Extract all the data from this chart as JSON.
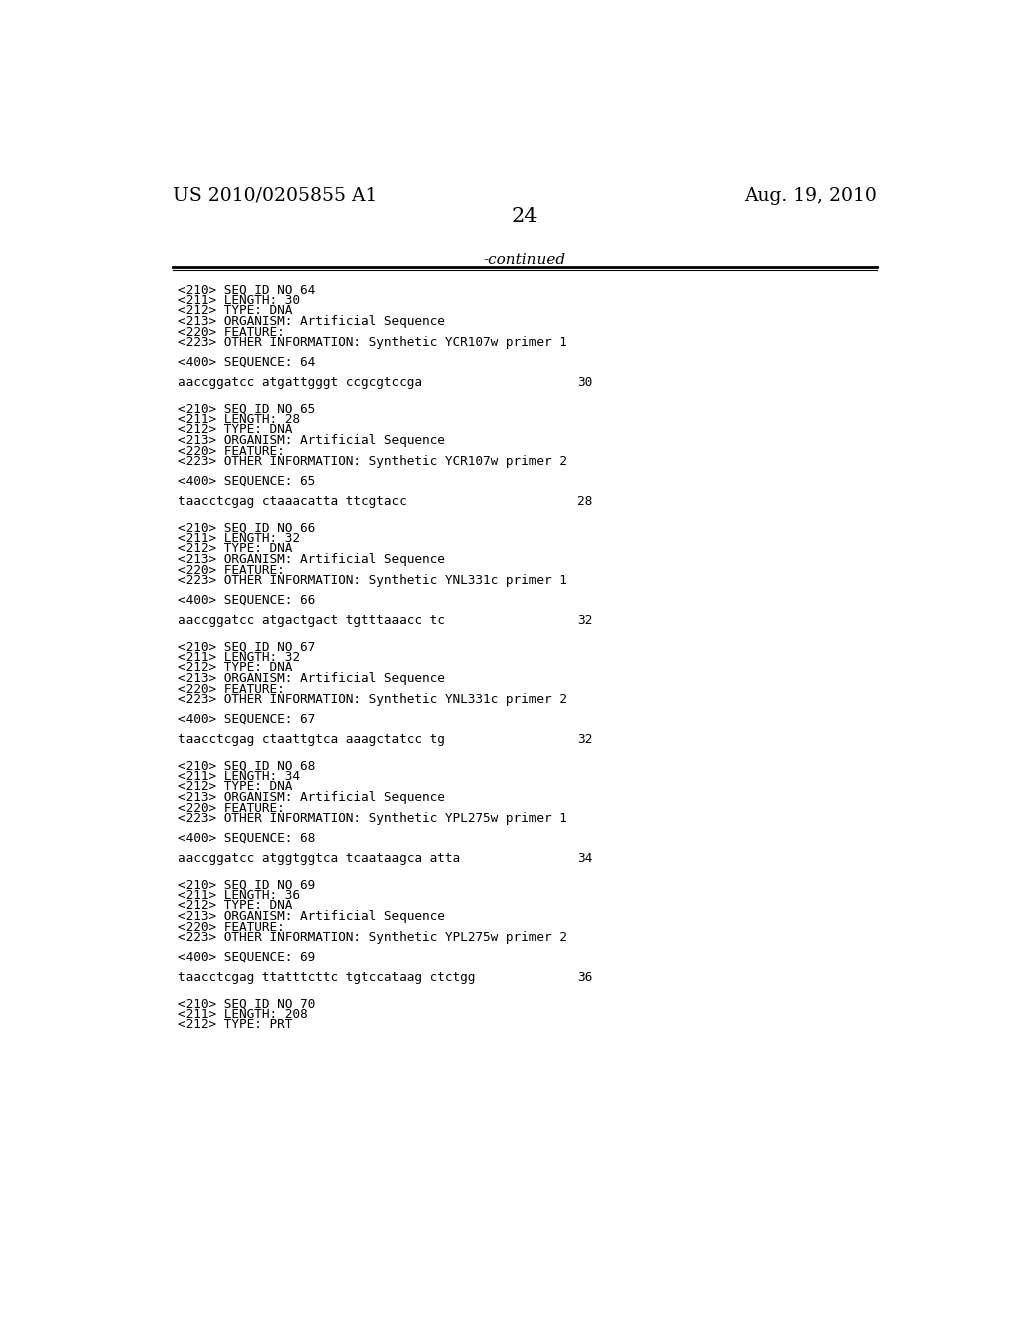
{
  "header_left": "US 2010/0205855 A1",
  "header_right": "Aug. 19, 2010",
  "page_number": "24",
  "continued_label": "-continued",
  "background_color": "#ffffff",
  "text_color": "#000000",
  "entries": [
    {
      "meta_lines": [
        "<210> SEQ ID NO 64",
        "<211> LENGTH: 30",
        "<212> TYPE: DNA",
        "<213> ORGANISM: Artificial Sequence",
        "<220> FEATURE:",
        "<223> OTHER INFORMATION: Synthetic YCR107w primer 1"
      ],
      "seq_label": "<400> SEQUENCE: 64",
      "seq_data": "aaccggatcc atgattgggt ccgcgtccga",
      "seq_num": "30"
    },
    {
      "meta_lines": [
        "<210> SEQ ID NO 65",
        "<211> LENGTH: 28",
        "<212> TYPE: DNA",
        "<213> ORGANISM: Artificial Sequence",
        "<220> FEATURE:",
        "<223> OTHER INFORMATION: Synthetic YCR107w primer 2"
      ],
      "seq_label": "<400> SEQUENCE: 65",
      "seq_data": "taacctcgag ctaaacatta ttcgtacc",
      "seq_num": "28"
    },
    {
      "meta_lines": [
        "<210> SEQ ID NO 66",
        "<211> LENGTH: 32",
        "<212> TYPE: DNA",
        "<213> ORGANISM: Artificial Sequence",
        "<220> FEATURE:",
        "<223> OTHER INFORMATION: Synthetic YNL331c primer 1"
      ],
      "seq_label": "<400> SEQUENCE: 66",
      "seq_data": "aaccggatcc atgactgact tgtttaaacc tc",
      "seq_num": "32"
    },
    {
      "meta_lines": [
        "<210> SEQ ID NO 67",
        "<211> LENGTH: 32",
        "<212> TYPE: DNA",
        "<213> ORGANISM: Artificial Sequence",
        "<220> FEATURE:",
        "<223> OTHER INFORMATION: Synthetic YNL331c primer 2"
      ],
      "seq_label": "<400> SEQUENCE: 67",
      "seq_data": "taacctcgag ctaattgtca aaagctatcc tg",
      "seq_num": "32"
    },
    {
      "meta_lines": [
        "<210> SEQ ID NO 68",
        "<211> LENGTH: 34",
        "<212> TYPE: DNA",
        "<213> ORGANISM: Artificial Sequence",
        "<220> FEATURE:",
        "<223> OTHER INFORMATION: Synthetic YPL275w primer 1"
      ],
      "seq_label": "<400> SEQUENCE: 68",
      "seq_data": "aaccggatcc atggtggtca tcaataagca atta",
      "seq_num": "34"
    },
    {
      "meta_lines": [
        "<210> SEQ ID NO 69",
        "<211> LENGTH: 36",
        "<212> TYPE: DNA",
        "<213> ORGANISM: Artificial Sequence",
        "<220> FEATURE:",
        "<223> OTHER INFORMATION: Synthetic YPL275w primer 2"
      ],
      "seq_label": "<400> SEQUENCE: 69",
      "seq_data": "taacctcgag ttatttcttc tgtccataag ctctgg",
      "seq_num": "36"
    },
    {
      "meta_lines": [
        "<210> SEQ ID NO 70",
        "<211> LENGTH: 208",
        "<212> TYPE: PRT"
      ],
      "seq_label": null,
      "seq_data": null,
      "seq_num": null
    }
  ]
}
